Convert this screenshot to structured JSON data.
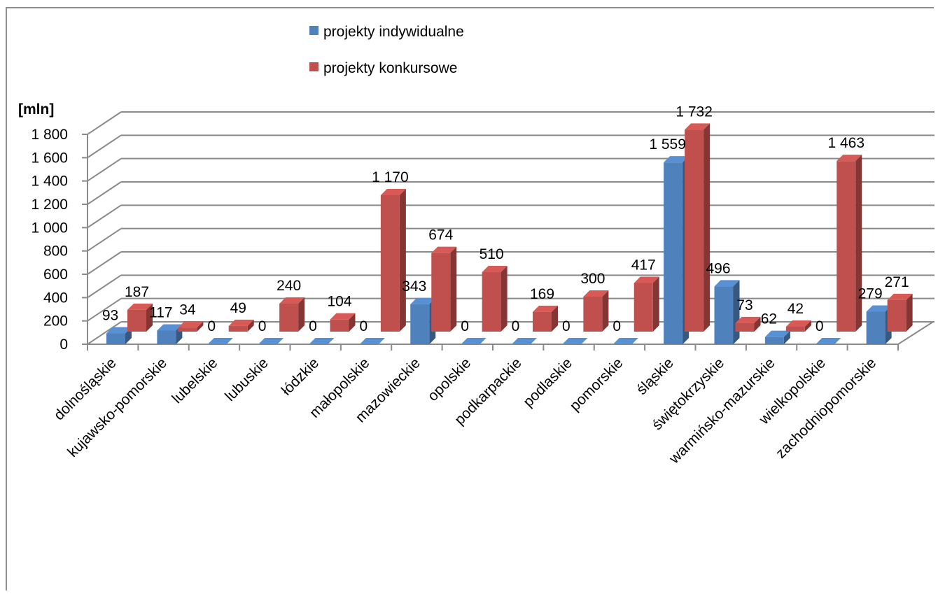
{
  "chart_data": {
    "type": "bar",
    "ylabel": "[mln]",
    "ylim": [
      0,
      1800
    ],
    "yticks": [
      0,
      200,
      400,
      600,
      800,
      1000,
      1200,
      1400,
      1600,
      1800
    ],
    "ytick_labels": [
      "0",
      "200",
      "400",
      "600",
      "800",
      "1 000",
      "1 200",
      "1 400",
      "1 600",
      "1 800"
    ],
    "grid": true,
    "legend_position": "top-center",
    "categories": [
      "dolnośląskie",
      "kujawsko-pomorskie",
      "lubelskie",
      "lubuskie",
      "łódzkie",
      "małopolskie",
      "mazowieckie",
      "opolskie",
      "podkarpackie",
      "podlaskie",
      "pomorskie",
      "śląskie",
      "świętokrzyskie",
      "warmińsko-mazurskie",
      "wielkopolskie",
      "zachodniopomorskie"
    ],
    "series": [
      {
        "name": "projekty indywidualne",
        "color": "#4f81bd",
        "values": [
          93,
          117,
          0,
          0,
          0,
          0,
          343,
          0,
          0,
          0,
          0,
          1559,
          496,
          62,
          0,
          279
        ],
        "labels": [
          "93",
          "117",
          "0",
          "0",
          "0",
          "0",
          "343",
          "0",
          "0",
          "0",
          "0",
          "1 559",
          "496",
          "62",
          "0",
          "279"
        ]
      },
      {
        "name": "projekty konkursowe",
        "color": "#c0504d",
        "values": [
          187,
          34,
          49,
          240,
          104,
          1170,
          674,
          510,
          169,
          300,
          417,
          1732,
          73,
          42,
          1463,
          271
        ],
        "labels": [
          "187",
          "34",
          "49",
          "240",
          "104",
          "1 170",
          "674",
          "510",
          "169",
          "300",
          "417",
          "1 732",
          "73",
          "42",
          "1 463",
          "271"
        ]
      }
    ]
  }
}
